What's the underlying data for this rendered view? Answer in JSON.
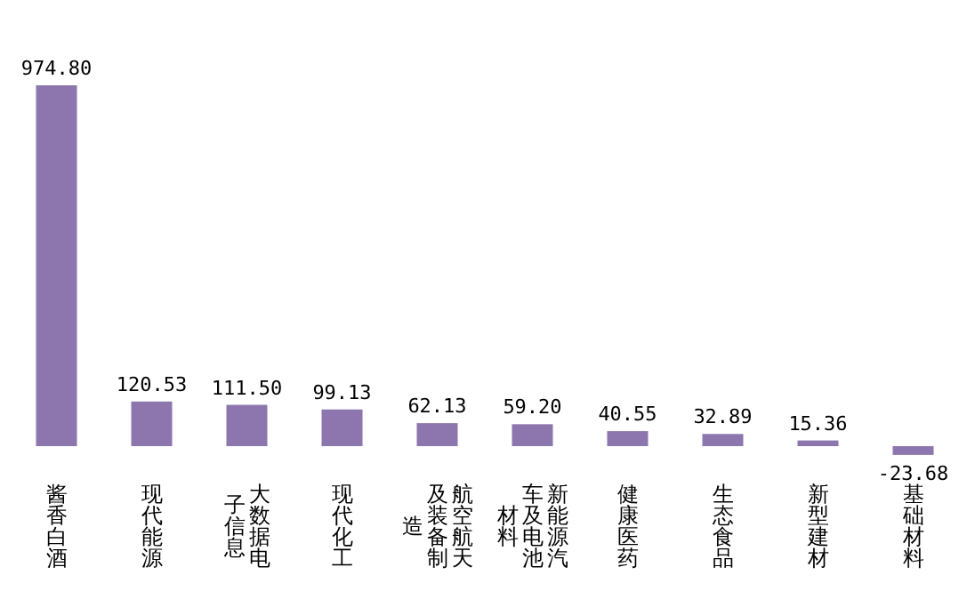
{
  "chart_data": {
    "type": "bar",
    "categories": [
      "酱香白酒",
      "现代能源",
      "大数据电子信息",
      "现代化工",
      "航空航天及装备制造",
      "新能源汽车及电池材料",
      "健康医药",
      "生态食品",
      "新型建材",
      "基础材料"
    ],
    "values": [
      974.8,
      120.53,
      111.5,
      99.13,
      62.13,
      59.2,
      40.55,
      32.89,
      15.36,
      -23.68
    ],
    "value_labels": [
      "974.80",
      "120.53",
      "111.50",
      "99.13",
      "62.13",
      "59.20",
      "40.55",
      "32.89",
      "15.36",
      "-23.68"
    ],
    "color": "#8c76ad"
  }
}
